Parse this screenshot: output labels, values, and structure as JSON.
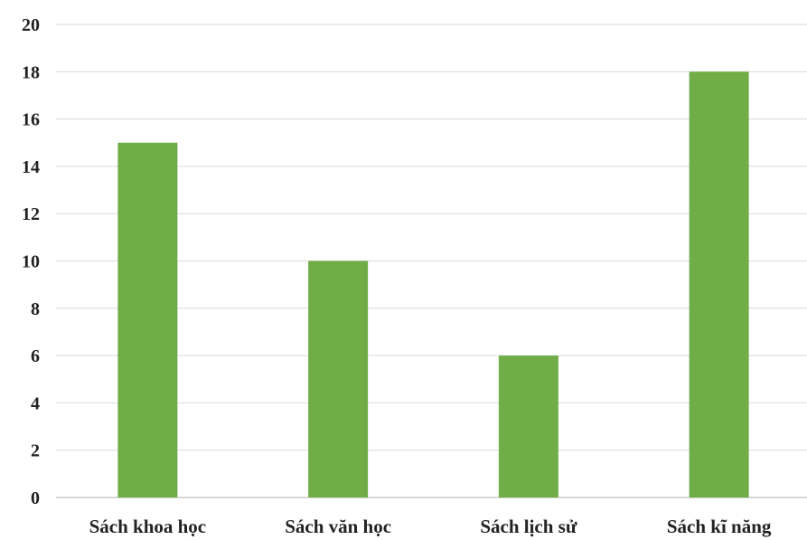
{
  "chart_data": {
    "type": "bar",
    "title": "",
    "xlabel": "",
    "ylabel": "",
    "categories": [
      "Sách khoa học",
      "Sách văn học",
      "Sách lịch sử",
      "Sách kĩ năng"
    ],
    "values": [
      15,
      10,
      6,
      18
    ],
    "ylim": [
      0,
      20
    ],
    "yticks": [
      0,
      2,
      4,
      6,
      8,
      10,
      12,
      14,
      16,
      18,
      20
    ],
    "grid": true,
    "legend": "none",
    "bar_color": "#70ad47",
    "grid_color": "#d9d9d9",
    "text_color": "#222222"
  }
}
